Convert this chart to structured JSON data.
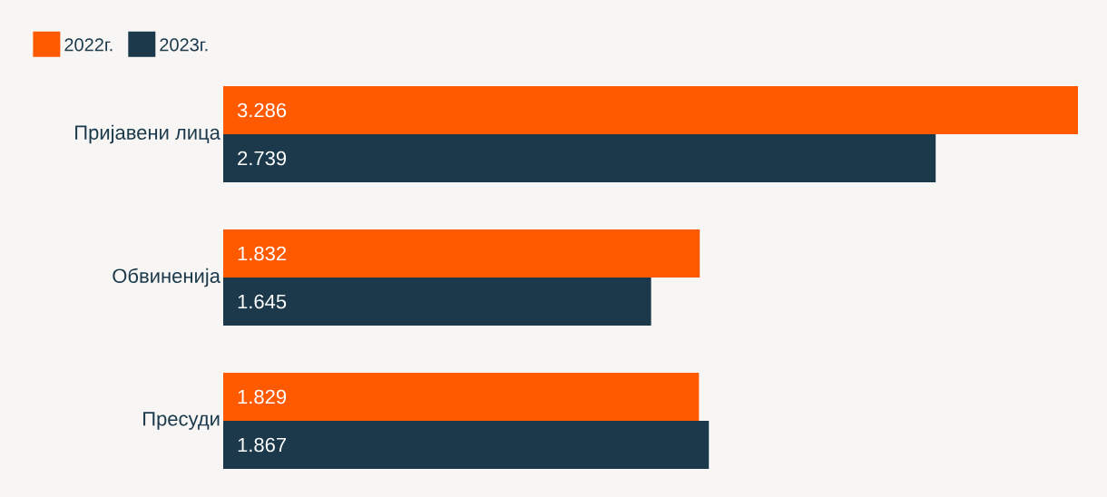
{
  "chart_data": {
    "type": "bar",
    "orientation": "horizontal",
    "categories": [
      "Пријавени лица",
      "Обвиненија",
      "Пресуди"
    ],
    "series": [
      {
        "name": "2022г.",
        "color": "#ff5a00",
        "values": [
          3.286,
          1.832,
          1.829
        ]
      },
      {
        "name": "2023г.",
        "color": "#1b394b",
        "values": [
          2.739,
          1.645,
          1.867
        ]
      }
    ],
    "xlim": [
      0,
      3.286
    ],
    "legend": "top left",
    "data_labels": true
  }
}
